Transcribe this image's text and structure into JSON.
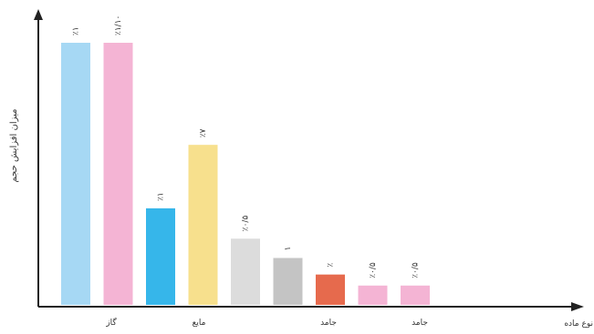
{
  "chart_data": {
    "type": "bar",
    "ylabel": "میزان افزایش حجم",
    "xlabel": "نوع ماده",
    "grid": false,
    "legend": "none",
    "ylim": [
      0,
      100
    ],
    "values": [
      95,
      95,
      35,
      58,
      24,
      17,
      11,
      7,
      7
    ],
    "value_labels": [
      "٪۱",
      "٪۱/۱۰",
      "٪۱",
      "٪۷",
      "٪۰/۵",
      "۱",
      "٪",
      "٪۰/۵",
      "٪۰/۵"
    ],
    "colors": [
      "#a6d8f4",
      "#f4b4d4",
      "#36b6ea",
      "#f7e08d",
      "#dcdcdc",
      "#c4c4c4",
      "#e66a4d",
      "#f4b4d4",
      "#f4b4d4"
    ],
    "group_labels": [
      "گاز",
      "مایع",
      "جامد",
      "جامد"
    ]
  }
}
